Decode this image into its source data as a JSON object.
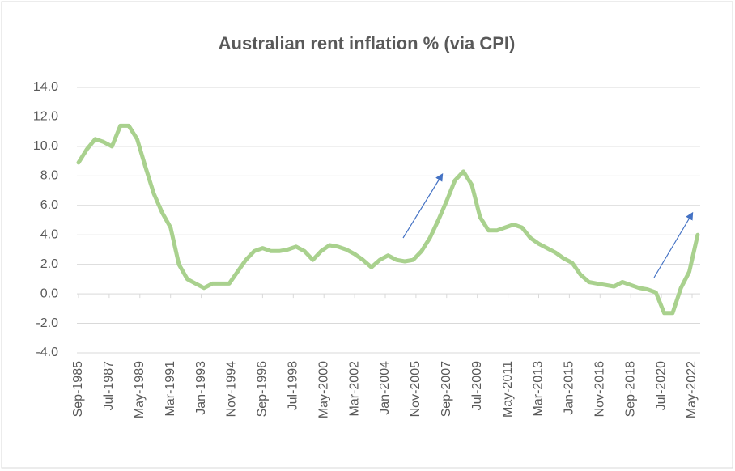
{
  "chart_data": {
    "type": "line",
    "title": "Australian rent inflation % (via CPI)",
    "x": [
      "Sep-1985",
      "Mar-1986",
      "Sep-1986",
      "Mar-1987",
      "Sep-1987",
      "Mar-1988",
      "Sep-1988",
      "Mar-1989",
      "Sep-1989",
      "Mar-1990",
      "Sep-1990",
      "Mar-1991",
      "Sep-1991",
      "Mar-1992",
      "Sep-1992",
      "Mar-1993",
      "Sep-1993",
      "Mar-1994",
      "Sep-1994",
      "Mar-1995",
      "Sep-1995",
      "Mar-1996",
      "Sep-1996",
      "Mar-1997",
      "Sep-1997",
      "Mar-1998",
      "Sep-1998",
      "Mar-1999",
      "Sep-1999",
      "Mar-2000",
      "Sep-2000",
      "Mar-2001",
      "Sep-2001",
      "Mar-2002",
      "Sep-2002",
      "Mar-2003",
      "Sep-2003",
      "Mar-2004",
      "Sep-2004",
      "Mar-2005",
      "Sep-2005",
      "Mar-2006",
      "Sep-2006",
      "Mar-2007",
      "Sep-2007",
      "Mar-2008",
      "Sep-2008",
      "Mar-2009",
      "Sep-2009",
      "Mar-2010",
      "Sep-2010",
      "Mar-2011",
      "Sep-2011",
      "Mar-2012",
      "Sep-2012",
      "Mar-2013",
      "Sep-2013",
      "Mar-2014",
      "Sep-2014",
      "Mar-2015",
      "Sep-2015",
      "Mar-2016",
      "Sep-2016",
      "Mar-2017",
      "Sep-2017",
      "Mar-2018",
      "Sep-2018",
      "Mar-2019",
      "Sep-2019",
      "Mar-2020",
      "Sep-2020",
      "Mar-2021",
      "Sep-2021",
      "Mar-2022",
      "Sep-2022"
    ],
    "series": [
      {
        "color": "#a9d18e",
        "values": [
          8.9,
          9.8,
          10.5,
          10.3,
          10.0,
          11.4,
          11.4,
          10.5,
          8.6,
          6.8,
          5.5,
          4.5,
          2.0,
          1.0,
          0.7,
          0.4,
          0.7,
          0.7,
          0.7,
          1.5,
          2.3,
          2.9,
          3.1,
          2.9,
          2.9,
          3.0,
          3.2,
          2.9,
          2.3,
          2.9,
          3.3,
          3.2,
          3.0,
          2.7,
          2.3,
          1.8,
          2.3,
          2.6,
          2.3,
          2.2,
          2.3,
          2.9,
          3.8,
          5.0,
          6.3,
          7.7,
          8.3,
          7.4,
          5.2,
          4.3,
          4.3,
          4.5,
          4.7,
          4.5,
          3.8,
          3.4,
          3.1,
          2.8,
          2.4,
          2.1,
          1.3,
          0.8,
          0.7,
          0.6,
          0.5,
          0.8,
          0.6,
          0.4,
          0.3,
          0.1,
          -1.3,
          -1.3,
          0.4,
          1.5,
          4.0
        ]
      }
    ],
    "xticks": [
      "Sep-1985",
      "Jul-1987",
      "May-1989",
      "Mar-1991",
      "Jan-1993",
      "Nov-1994",
      "Sep-1996",
      "Jul-1998",
      "May-2000",
      "Mar-2002",
      "Jan-2004",
      "Nov-2005",
      "Sep-2007",
      "Jul-2009",
      "May-2011",
      "Mar-2013",
      "Jan-2015",
      "Nov-2016",
      "Sep-2018",
      "Jul-2020",
      "May-2022"
    ],
    "ylim": [
      -4,
      14
    ],
    "yticks": [
      {
        "value": -4,
        "label": "-4.0"
      },
      {
        "value": -2,
        "label": "-2.0"
      },
      {
        "value": 0,
        "label": "0.0"
      },
      {
        "value": 2,
        "label": "2.0"
      },
      {
        "value": 4,
        "label": "4.0"
      },
      {
        "value": 6,
        "label": "6.0"
      },
      {
        "value": 8,
        "label": "8.0"
      },
      {
        "value": 10,
        "label": "10.0"
      },
      {
        "value": 12,
        "label": "12.0"
      },
      {
        "value": 14,
        "label": "14.0"
      }
    ],
    "grid": true
  }
}
